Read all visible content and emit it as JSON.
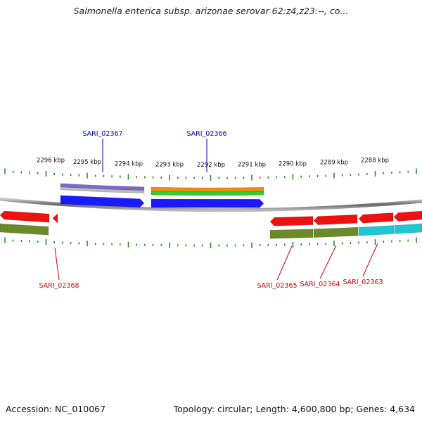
{
  "title": "Salmonella enterica subsp. arizonae serovar 62:z4,z23:--, co...",
  "footer": {
    "accession": "Accession: NC_010067",
    "stats": "Topology: circular; Length: 4,600,800 bp; Genes: 4,634"
  },
  "colors": {
    "forward_label": "#0000cc",
    "reverse_label": "#cc0000",
    "tick": "#2a8a2a",
    "backbone": "#888888",
    "blue": "#1a1aff",
    "red": "#ee1111",
    "olive": "#6b8a2a",
    "cyan": "#1fc8d0",
    "purple": "#7b68c8",
    "orange": "#f08a10",
    "green": "#33cc33"
  },
  "kbp_labels": [
    "2296 kbp",
    "2295 kbp",
    "2294 kbp",
    "2293 kbp",
    "2292 kbp",
    "2291 kbp",
    "2290 kbp",
    "2289 kbp",
    "2288 kbp"
  ],
  "genes": {
    "forward": [
      "SARI_02367",
      "SARI_02366"
    ],
    "reverse": [
      "SARI_02368",
      "SARI_02365",
      "SARI_02364",
      "SARI_02363"
    ]
  }
}
